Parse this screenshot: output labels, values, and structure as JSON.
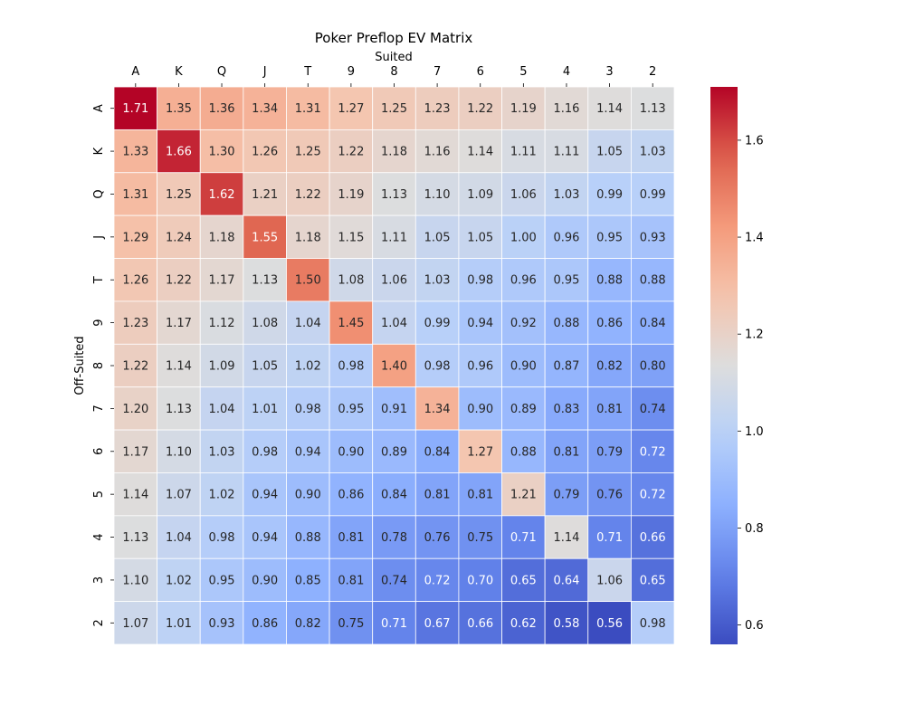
{
  "chart_data": {
    "type": "heatmap",
    "title": "Poker Preflop EV Matrix",
    "xlabel": "Suited",
    "ylabel": "Off-Suited",
    "x_categories": [
      "A",
      "K",
      "Q",
      "J",
      "T",
      "9",
      "8",
      "7",
      "6",
      "5",
      "4",
      "3",
      "2"
    ],
    "y_categories": [
      "A",
      "K",
      "Q",
      "J",
      "T",
      "9",
      "8",
      "7",
      "6",
      "5",
      "4",
      "3",
      "2"
    ],
    "values": [
      [
        1.71,
        1.35,
        1.36,
        1.34,
        1.31,
        1.27,
        1.25,
        1.23,
        1.22,
        1.19,
        1.16,
        1.14,
        1.13
      ],
      [
        1.33,
        1.66,
        1.3,
        1.26,
        1.25,
        1.22,
        1.18,
        1.16,
        1.14,
        1.11,
        1.11,
        1.05,
        1.03
      ],
      [
        1.31,
        1.25,
        1.62,
        1.21,
        1.22,
        1.19,
        1.13,
        1.1,
        1.09,
        1.06,
        1.03,
        0.99,
        0.99
      ],
      [
        1.29,
        1.24,
        1.18,
        1.55,
        1.18,
        1.15,
        1.11,
        1.05,
        1.05,
        1.0,
        0.96,
        0.95,
        0.93
      ],
      [
        1.26,
        1.22,
        1.17,
        1.13,
        1.5,
        1.08,
        1.06,
        1.03,
        0.98,
        0.96,
        0.95,
        0.88,
        0.88
      ],
      [
        1.23,
        1.17,
        1.12,
        1.08,
        1.04,
        1.45,
        1.04,
        0.99,
        0.94,
        0.92,
        0.88,
        0.86,
        0.84
      ],
      [
        1.22,
        1.14,
        1.09,
        1.05,
        1.02,
        0.98,
        1.4,
        0.98,
        0.96,
        0.9,
        0.87,
        0.82,
        0.8
      ],
      [
        1.2,
        1.13,
        1.04,
        1.01,
        0.98,
        0.95,
        0.91,
        1.34,
        0.9,
        0.89,
        0.83,
        0.81,
        0.74
      ],
      [
        1.17,
        1.1,
        1.03,
        0.98,
        0.94,
        0.9,
        0.89,
        0.84,
        1.27,
        0.88,
        0.81,
        0.79,
        0.72
      ],
      [
        1.14,
        1.07,
        1.02,
        0.94,
        0.9,
        0.86,
        0.84,
        0.81,
        0.81,
        1.21,
        0.79,
        0.76,
        0.72
      ],
      [
        1.13,
        1.04,
        0.98,
        0.94,
        0.88,
        0.81,
        0.78,
        0.76,
        0.75,
        0.71,
        1.14,
        0.71,
        0.66
      ],
      [
        1.1,
        1.02,
        0.95,
        0.9,
        0.85,
        0.81,
        0.74,
        0.72,
        0.7,
        0.65,
        0.64,
        1.06,
        0.65
      ],
      [
        1.07,
        1.01,
        0.93,
        0.86,
        0.82,
        0.75,
        0.71,
        0.67,
        0.66,
        0.62,
        0.58,
        0.56,
        0.98
      ]
    ],
    "value_format": "2 decimals",
    "vmin": 0.56,
    "vmax": 1.71,
    "colormap": "coolwarm",
    "colorbar_ticks": [
      0.6,
      0.8,
      1.0,
      1.2,
      1.4,
      1.6
    ],
    "colorbar_tick_labels": [
      "0.6",
      "0.8",
      "1.0",
      "1.2",
      "1.4",
      "1.6"
    ],
    "x_axis_position": "top",
    "cell_borders": "white",
    "grid": false,
    "legend": "colorbar-right"
  }
}
